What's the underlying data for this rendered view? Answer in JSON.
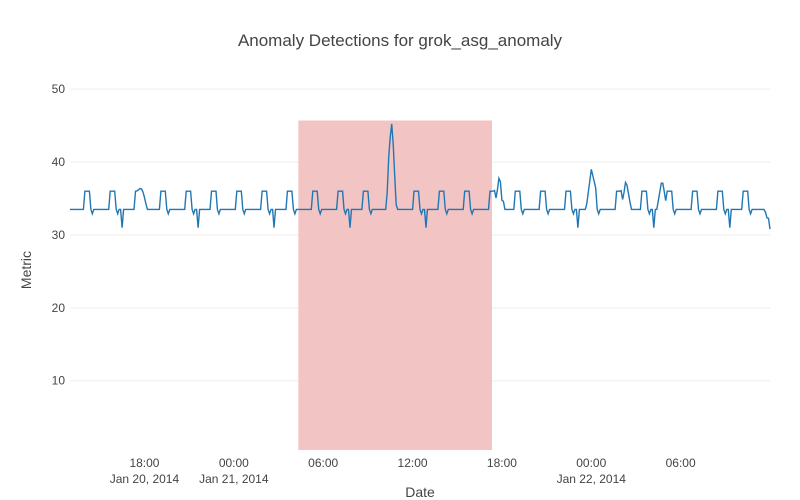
{
  "chart_data": {
    "type": "line",
    "title": "Anomaly Detections for grok_asg_anomaly",
    "xlabel": "Date",
    "ylabel": "Metric",
    "x_range": [
      "2014-01-20 13:00",
      "2014-01-22 12:00"
    ],
    "ylim": [
      0.5,
      54
    ],
    "y_ticks": [
      10,
      20,
      30,
      40,
      50
    ],
    "x_ticks": [
      {
        "at": "2014-01-20 18:00",
        "line1": "18:00",
        "line2": "Jan 20, 2014"
      },
      {
        "at": "2014-01-21 00:00",
        "line1": "00:00",
        "line2": "Jan 21, 2014"
      },
      {
        "at": "2014-01-21 06:00",
        "line1": "06:00",
        "line2": ""
      },
      {
        "at": "2014-01-21 12:00",
        "line1": "12:00",
        "line2": ""
      },
      {
        "at": "2014-01-21 18:00",
        "line1": "18:00",
        "line2": ""
      },
      {
        "at": "2014-01-22 00:00",
        "line1": "00:00",
        "line2": "Jan 22, 2014"
      },
      {
        "at": "2014-01-22 06:00",
        "line1": "06:00",
        "line2": ""
      }
    ],
    "anomaly_window": {
      "start": "2014-01-21 04:20",
      "end": "2014-01-21 17:20",
      "y_top": 45.7,
      "color": "#f2c4c4"
    },
    "series": [
      {
        "color": "#1f77b4",
        "baseline": 33.5,
        "typical_peak": 36.0,
        "typical_dip": 31.0,
        "highlights": [
          {
            "x": "2014-01-20 17:50",
            "y": 36.6
          },
          {
            "x": "2014-01-21 10:35",
            "y": 45.7
          },
          {
            "x": "2014-01-21 17:50",
            "y": 38.2
          },
          {
            "x": "2014-01-22 00:00",
            "y": 39.0
          },
          {
            "x": "2014-01-22 02:20",
            "y": 37.6
          },
          {
            "x": "2014-01-22 04:45",
            "y": 37.7
          },
          {
            "x": "2014-01-22 12:00",
            "y": 30.8
          }
        ]
      }
    ],
    "grid": true,
    "legend": "none"
  }
}
